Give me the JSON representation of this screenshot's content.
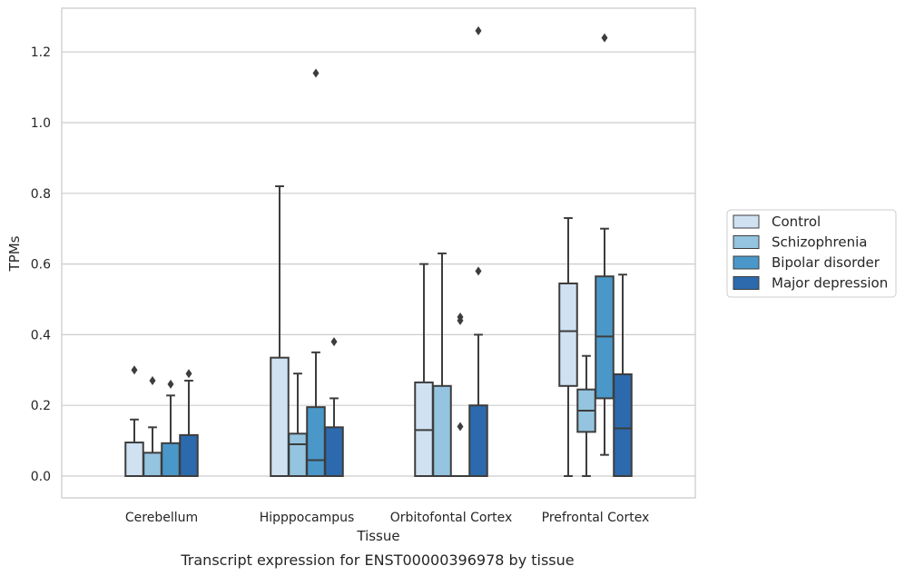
{
  "chart_data": {
    "type": "boxplot",
    "caption": "Transcript expression for ENST00000396978 by tissue",
    "xlabel": "Tissue",
    "ylabel": "TPMs",
    "ylim": [
      -0.06,
      1.32
    ],
    "yticks": [
      0.0,
      0.2,
      0.4,
      0.6,
      0.8,
      1.0,
      1.2
    ],
    "ytick_labels": [
      "0.0",
      "0.2",
      "0.4",
      "0.6",
      "0.8",
      "1.0",
      "1.2"
    ],
    "grid": "horizontal",
    "legend_position": "right",
    "categories": [
      "Cerebellum",
      "Hipppocampus",
      "Orbitofontal Cortex",
      "Prefrontal Cortex"
    ],
    "series": [
      {
        "name": "Control",
        "color": "#d0e1f2",
        "boxes": [
          {
            "whislo": 0.0,
            "q1": 0.0,
            "med": 0.0,
            "q3": 0.095,
            "whishi": 0.16,
            "fliers": [
              0.3
            ]
          },
          {
            "whislo": 0.0,
            "q1": 0.0,
            "med": 0.0,
            "q3": 0.335,
            "whishi": 0.82,
            "fliers": []
          },
          {
            "whislo": 0.0,
            "q1": 0.0,
            "med": 0.13,
            "q3": 0.265,
            "whishi": 0.6,
            "fliers": []
          },
          {
            "whislo": 0.0,
            "q1": 0.255,
            "med": 0.41,
            "q3": 0.545,
            "whishi": 0.73,
            "fliers": []
          }
        ]
      },
      {
        "name": "Schizophrenia",
        "color": "#94c4df",
        "boxes": [
          {
            "whislo": 0.0,
            "q1": 0.0,
            "med": 0.0,
            "q3": 0.066,
            "whishi": 0.138,
            "fliers": [
              0.27
            ]
          },
          {
            "whislo": 0.0,
            "q1": 0.0,
            "med": 0.09,
            "q3": 0.12,
            "whishi": 0.29,
            "fliers": []
          },
          {
            "whislo": 0.0,
            "q1": 0.0,
            "med": 0.0,
            "q3": 0.255,
            "whishi": 0.63,
            "fliers": []
          },
          {
            "whislo": 0.0,
            "q1": 0.125,
            "med": 0.185,
            "q3": 0.245,
            "whishi": 0.34,
            "fliers": []
          }
        ]
      },
      {
        "name": "Bipolar disorder",
        "color": "#4a98c9",
        "boxes": [
          {
            "whislo": 0.0,
            "q1": 0.0,
            "med": 0.0,
            "q3": 0.093,
            "whishi": 0.228,
            "fliers": [
              0.26
            ]
          },
          {
            "whislo": 0.0,
            "q1": 0.0,
            "med": 0.045,
            "q3": 0.195,
            "whishi": 0.35,
            "fliers": [
              1.14
            ]
          },
          {
            "whislo": 0.0,
            "q1": 0.0,
            "med": 0.0,
            "q3": 0.0,
            "whishi": 0.0,
            "fliers": [
              0.14,
              0.44,
              0.45
            ]
          },
          {
            "whislo": 0.06,
            "q1": 0.22,
            "med": 0.395,
            "q3": 0.565,
            "whishi": 0.7,
            "fliers": [
              1.24
            ]
          }
        ]
      },
      {
        "name": "Major depression",
        "color": "#2c6aad",
        "boxes": [
          {
            "whislo": 0.0,
            "q1": 0.0,
            "med": 0.0,
            "q3": 0.116,
            "whishi": 0.27,
            "fliers": [
              0.29
            ]
          },
          {
            "whislo": 0.0,
            "q1": 0.0,
            "med": 0.0,
            "q3": 0.138,
            "whishi": 0.22,
            "fliers": [
              0.38
            ]
          },
          {
            "whislo": 0.0,
            "q1": 0.0,
            "med": 0.0,
            "q3": 0.2,
            "whishi": 0.4,
            "fliers": [
              0.58,
              1.26
            ]
          },
          {
            "whislo": 0.0,
            "q1": 0.0,
            "med": 0.135,
            "q3": 0.288,
            "whishi": 0.57,
            "fliers": []
          }
        ]
      }
    ]
  }
}
